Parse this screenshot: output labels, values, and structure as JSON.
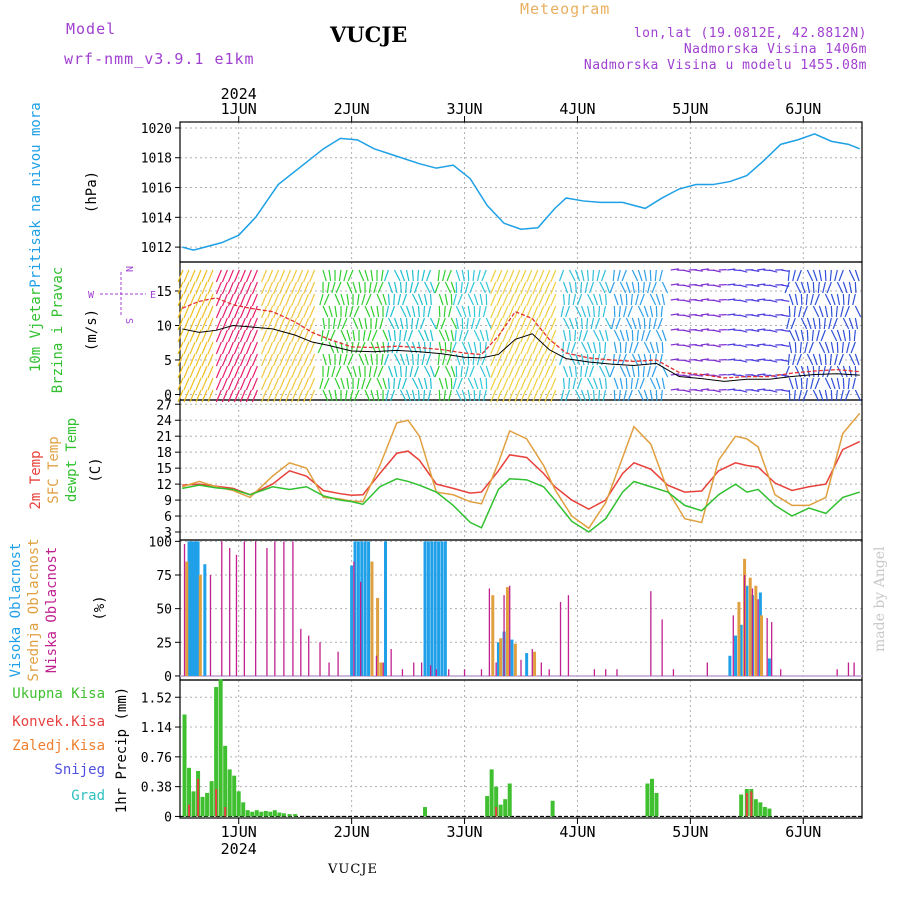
{
  "header": {
    "model_label": "Model",
    "model_run": "wrf-nmm_v3.9.1 e1km",
    "station": "VUCJE",
    "product": "Meteogram",
    "lonlat": "lon,lat (19.0812E, 42.8812N)",
    "elevation": "Nadmorska Visina 1406m",
    "elevation_model": "Nadmorska Visina u modelu 1455.08m"
  },
  "footer": {
    "station": "VUCJE",
    "credit": "made by Angel"
  },
  "time_axis": {
    "year": "2024",
    "day_labels": [
      "1JUN",
      "2JUN",
      "3JUN",
      "4JUN",
      "5JUN",
      "6JUN"
    ],
    "day_positions": [
      1,
      2,
      3,
      4,
      5,
      6
    ],
    "range": [
      0.48,
      6.52
    ]
  },
  "colors": {
    "pressure": "#1ea0e6",
    "temp2m": "#e8403a",
    "sfc": "#e0a040",
    "dewpt": "#30c030",
    "high_cloud": "#20a0e8",
    "mid_cloud": "#e0a040",
    "low_cloud": "#c02090",
    "total_precip": "#40c030",
    "convective": "#e84040",
    "freezing": "#f08030",
    "snow": "#5050e0",
    "hail": "#30c0c0",
    "axis_purple": "#a040d0"
  },
  "chart_data": [
    {
      "type": "line",
      "panel": "pressure",
      "ylabel_main": "Pritisak na nivou mora",
      "ylabel_unit": "(hPa)",
      "ylim": [
        1011,
        1020.4
      ],
      "yticks": [
        1012,
        1014,
        1016,
        1018,
        1020
      ],
      "x": [
        0.5,
        0.6,
        0.7,
        0.85,
        1.0,
        1.15,
        1.35,
        1.55,
        1.75,
        1.9,
        2.05,
        2.2,
        2.4,
        2.6,
        2.75,
        2.9,
        3.05,
        3.2,
        3.35,
        3.5,
        3.65,
        3.8,
        3.9,
        4.05,
        4.2,
        4.4,
        4.6,
        4.75,
        4.9,
        5.05,
        5.2,
        5.35,
        5.5,
        5.65,
        5.8,
        5.95,
        6.1,
        6.25,
        6.4,
        6.5
      ],
      "y": [
        1012.0,
        1011.8,
        1012.0,
        1012.3,
        1012.8,
        1014.0,
        1016.2,
        1017.4,
        1018.6,
        1019.3,
        1019.2,
        1018.6,
        1018.1,
        1017.6,
        1017.3,
        1017.5,
        1016.6,
        1014.8,
        1013.6,
        1013.2,
        1013.3,
        1014.6,
        1015.3,
        1015.1,
        1015.0,
        1015.0,
        1014.6,
        1015.3,
        1015.9,
        1016.2,
        1016.2,
        1016.4,
        1016.8,
        1017.8,
        1018.9,
        1019.2,
        1019.6,
        1019.1,
        1018.9,
        1018.6
      ],
      "series_color_key": "pressure"
    },
    {
      "type": "line",
      "panel": "wind",
      "ylabel_main": "10m Vjetar",
      "ylabel_sub": "Brzina i Pravac",
      "ylabel_unit": "(m/s)",
      "compass": {
        "w": "W",
        "e": "E",
        "n": "N",
        "s": "S"
      },
      "ylim": [
        -0.8,
        19.2
      ],
      "yticks": [
        0,
        5,
        10,
        15
      ],
      "x": [
        0.5,
        0.65,
        0.8,
        0.95,
        1.1,
        1.3,
        1.5,
        1.65,
        1.8,
        2.0,
        2.2,
        2.4,
        2.6,
        2.8,
        3.0,
        3.15,
        3.3,
        3.45,
        3.6,
        3.75,
        3.9,
        4.1,
        4.3,
        4.5,
        4.7,
        4.9,
        5.1,
        5.3,
        5.5,
        5.7,
        5.9,
        6.1,
        6.3,
        6.5
      ],
      "y": [
        9.5,
        9.0,
        9.3,
        10.0,
        9.8,
        9.5,
        8.6,
        7.6,
        7.1,
        6.3,
        6.2,
        6.4,
        6.2,
        5.9,
        5.4,
        5.3,
        5.8,
        8.0,
        8.8,
        6.5,
        5.2,
        4.7,
        4.4,
        4.2,
        4.5,
        2.6,
        2.3,
        1.9,
        2.2,
        2.2,
        2.6,
        2.9,
        3.0,
        2.8
      ],
      "gust_y": [
        12.5,
        13.5,
        14.0,
        13.0,
        12.5,
        12.0,
        10.5,
        9.0,
        8.0,
        6.9,
        6.8,
        7.0,
        6.8,
        6.5,
        6.0,
        5.8,
        8.5,
        12.0,
        11.0,
        8.0,
        6.0,
        5.3,
        5.0,
        4.8,
        5.0,
        3.2,
        2.9,
        2.4,
        2.6,
        2.6,
        3.1,
        3.4,
        3.6,
        3.3
      ],
      "sector_bounds": [
        0.48,
        0.82,
        1.22,
        1.72,
        2.3,
        2.75,
        2.9,
        3.25,
        3.85,
        4.3,
        4.8,
        5.3,
        5.85,
        6.52
      ],
      "sector_colors": [
        "#f0c020",
        "#e82070",
        "#f0c840",
        "#30d030",
        "#20c0d0",
        "#30d030",
        "#30c8d8",
        "#f0d040",
        "#30c0d8",
        "#30a0e8",
        "#8030d0",
        "#5040e0",
        "#3050d8"
      ]
    },
    {
      "type": "line",
      "panel": "temperature",
      "ylabel_lines": [
        "2m Temp",
        "SFC Temp",
        "dewpt Temp"
      ],
      "ylabel_unit": "(C)",
      "ylim": [
        1.5,
        27.8
      ],
      "yticks": [
        3,
        6,
        9,
        12,
        15,
        18,
        21,
        24,
        27
      ],
      "x": [
        0.5,
        0.65,
        0.8,
        0.95,
        1.1,
        1.3,
        1.45,
        1.6,
        1.75,
        1.9,
        2.0,
        2.1,
        2.25,
        2.4,
        2.5,
        2.6,
        2.75,
        2.9,
        3.05,
        3.15,
        3.3,
        3.4,
        3.55,
        3.7,
        3.8,
        3.95,
        4.1,
        4.25,
        4.4,
        4.5,
        4.65,
        4.8,
        4.95,
        5.1,
        5.25,
        5.4,
        5.5,
        5.6,
        5.75,
        5.9,
        6.05,
        6.2,
        6.35,
        6.5
      ],
      "series": [
        {
          "name": "2m Temp",
          "color_key": "temp2m",
          "y": [
            11.8,
            12.0,
            11.6,
            11.2,
            10.0,
            12.0,
            14.5,
            13.5,
            10.8,
            10.2,
            9.9,
            10.0,
            14.0,
            17.8,
            18.2,
            16.5,
            12.0,
            11.2,
            10.3,
            10.5,
            14.5,
            17.5,
            17.0,
            14.0,
            11.5,
            9.0,
            7.3,
            9.0,
            14.0,
            16.0,
            14.8,
            11.8,
            10.5,
            10.7,
            14.5,
            16.0,
            15.5,
            15.2,
            12.2,
            10.8,
            11.5,
            12.0,
            18.5,
            20.0
          ]
        },
        {
          "name": "SFC Temp",
          "color_key": "sfc",
          "y": [
            11.5,
            12.5,
            11.5,
            10.8,
            9.5,
            13.5,
            16.0,
            15.0,
            9.5,
            9.2,
            8.8,
            8.7,
            15.5,
            23.5,
            24.0,
            21.0,
            10.5,
            10.0,
            8.7,
            8.3,
            16.0,
            22.0,
            20.5,
            15.5,
            11.0,
            6.0,
            3.7,
            8.5,
            17.0,
            22.8,
            19.5,
            10.8,
            5.5,
            4.8,
            16.5,
            21.0,
            20.5,
            19.0,
            10.0,
            8.0,
            8.0,
            9.5,
            21.5,
            25.3
          ]
        },
        {
          "name": "dewpt Temp",
          "color_key": "dewpt",
          "y": [
            11.2,
            11.8,
            11.3,
            11.0,
            10.0,
            11.5,
            11.0,
            11.5,
            9.8,
            9.0,
            8.7,
            8.2,
            11.5,
            13.0,
            12.5,
            11.8,
            10.5,
            8.0,
            4.8,
            3.8,
            11.0,
            13.0,
            12.8,
            11.5,
            9.0,
            5.0,
            3.0,
            5.5,
            10.5,
            12.5,
            11.5,
            10.5,
            8.0,
            7.0,
            10.0,
            12.0,
            10.5,
            11.0,
            8.0,
            6.0,
            7.5,
            6.5,
            9.5,
            10.5
          ]
        }
      ]
    },
    {
      "type": "bar",
      "panel": "clouds",
      "ylabel_lines": [
        "Visoka Oblacnost",
        "Srednja Oblacnost",
        "Niska Oblacnost"
      ],
      "ylabel_unit": "(%)",
      "ylim": [
        -3,
        101
      ],
      "yticks": [
        0,
        25,
        50,
        75,
        100
      ],
      "series": [
        {
          "name": "Visoka Oblacnost",
          "color_key": "high_cloud",
          "x": [
            0.56,
            0.58,
            0.6,
            0.62,
            0.64,
            0.7,
            2.0,
            2.03,
            2.06,
            2.09,
            2.12,
            2.15,
            2.3,
            2.65,
            2.68,
            2.71,
            2.74,
            2.77,
            2.8,
            2.83,
            3.3,
            3.35,
            3.42,
            3.55,
            5.35,
            5.4,
            5.45,
            5.5,
            5.55,
            5.62,
            5.7
          ],
          "values": [
            100,
            100,
            100,
            100,
            100,
            83,
            82,
            100,
            100,
            100,
            100,
            100,
            100,
            100,
            100,
            100,
            100,
            100,
            100,
            100,
            25,
            33,
            27,
            17,
            15,
            30,
            38,
            67,
            60,
            62,
            13
          ]
        },
        {
          "name": "Srednja Oblacnost",
          "color_key": "mid_cloud",
          "x": [
            0.54,
            0.66,
            2.18,
            2.23,
            2.26,
            3.25,
            3.32,
            3.38,
            3.45,
            3.62,
            5.43,
            5.48,
            5.53,
            5.58,
            5.63
          ],
          "values": [
            85,
            75,
            85,
            58,
            10,
            60,
            28,
            66,
            24,
            18,
            55,
            87,
            73,
            67,
            45
          ]
        },
        {
          "name": "Niska Oblacnost",
          "color_key": "low_cloud",
          "x": [
            0.52,
            0.75,
            0.85,
            0.92,
            0.98,
            1.05,
            1.15,
            1.25,
            1.32,
            1.4,
            1.48,
            1.55,
            1.62,
            1.72,
            1.8,
            1.88,
            2.02,
            2.08,
            2.22,
            2.28,
            2.35,
            2.45,
            2.55,
            2.62,
            2.7,
            2.75,
            2.86,
            3.0,
            3.15,
            3.22,
            3.28,
            3.35,
            3.4,
            3.5,
            3.6,
            3.68,
            3.75,
            3.85,
            3.92,
            4.15,
            4.25,
            4.35,
            4.65,
            4.75,
            4.85,
            5.15,
            5.38,
            5.48,
            5.55,
            5.6,
            5.68,
            5.72,
            5.8,
            6.3,
            6.4,
            6.45
          ],
          "values": [
            98,
            75,
            100,
            95,
            90,
            100,
            100,
            95,
            100,
            100,
            100,
            35,
            30,
            25,
            10,
            18,
            85,
            70,
            15,
            10,
            20,
            5,
            10,
            10,
            8,
            5,
            5,
            5,
            5,
            65,
            10,
            60,
            67,
            12,
            20,
            10,
            5,
            55,
            60,
            5,
            5,
            5,
            63,
            42,
            5,
            10,
            45,
            75,
            65,
            57,
            43,
            40,
            5,
            5,
            10,
            10
          ]
        }
      ]
    },
    {
      "type": "bar",
      "panel": "precipitation",
      "legend": [
        "Ukupna Kisa",
        "Konvek.Kisa",
        "Zaledj.Kisa",
        "Snijeg",
        "Grad"
      ],
      "ylabel_main": "1hr Precip",
      "ylabel_unit": "(mm)",
      "ylim": [
        -0.02,
        1.74
      ],
      "yticks": [
        0,
        0.38,
        0.76,
        1.14,
        1.52
      ],
      "series": [
        {
          "name": "Ukupna Kisa",
          "color_key": "total_precip",
          "x": [
            0.52,
            0.56,
            0.6,
            0.64,
            0.68,
            0.72,
            0.76,
            0.8,
            0.84,
            0.88,
            0.92,
            0.96,
            1.0,
            1.04,
            1.08,
            1.12,
            1.16,
            1.2,
            1.24,
            1.28,
            1.32,
            1.36,
            1.4,
            1.45,
            1.5,
            2.65,
            3.2,
            3.24,
            3.28,
            3.32,
            3.36,
            3.4,
            3.78,
            4.62,
            4.66,
            4.7,
            5.45,
            5.5,
            5.54,
            5.58,
            5.62,
            5.66,
            5.7
          ],
          "values": [
            1.3,
            0.62,
            0.32,
            0.58,
            0.25,
            0.3,
            0.45,
            1.65,
            1.75,
            0.9,
            0.6,
            0.52,
            0.32,
            0.18,
            0.08,
            0.06,
            0.08,
            0.06,
            0.07,
            0.06,
            0.08,
            0.05,
            0.04,
            0.03,
            0.03,
            0.12,
            0.26,
            0.6,
            0.38,
            0.15,
            0.22,
            0.42,
            0.2,
            0.42,
            0.48,
            0.3,
            0.28,
            0.35,
            0.35,
            0.22,
            0.18,
            0.12,
            0.1
          ]
        },
        {
          "name": "Konvek.Kisa",
          "color_key": "convective",
          "x": [
            0.56,
            0.64,
            0.8,
            0.88,
            3.28,
            5.5,
            5.54
          ],
          "values": [
            0.15,
            0.48,
            0.35,
            0.12,
            0.12,
            0.3,
            0.32
          ]
        }
      ]
    }
  ]
}
